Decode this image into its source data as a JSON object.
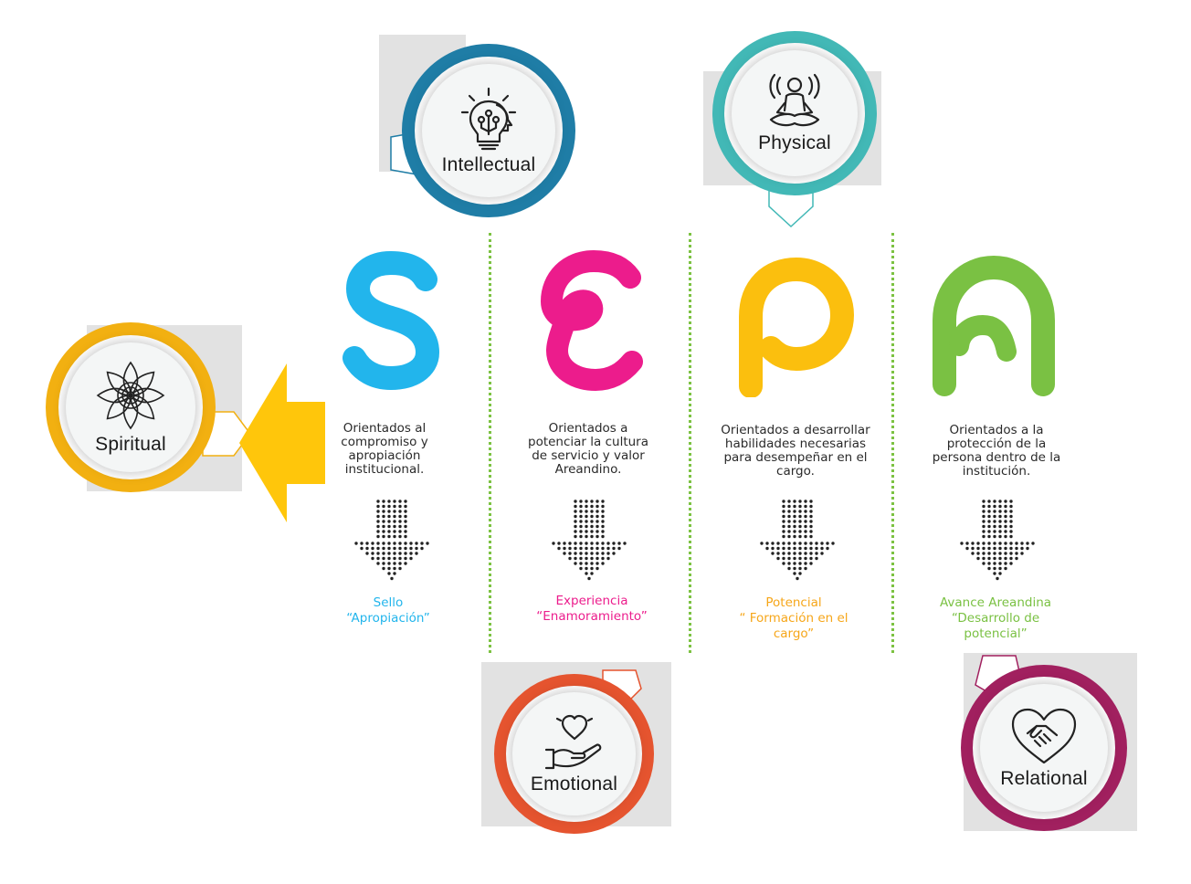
{
  "colors": {
    "s": "#22b5ec",
    "e": "#ec1c8c",
    "p": "#fbbf0e",
    "a": "#7ac143",
    "intellectual_ring": "#1f7da6",
    "physical_ring": "#42b8b6",
    "spiritual_ring": "#f2b011",
    "emotional_ring": "#e5542f",
    "relational_ring": "#a1205f",
    "divider": "#7cc242",
    "arrow_dots": "#222222",
    "big_arrow": "#ffc60b"
  },
  "dimensions": [
    {
      "id": "intellectual",
      "label": "Intellectual",
      "icon": "lightbulb-head-icon"
    },
    {
      "id": "physical",
      "label": "Physical",
      "icon": "meditation-icon"
    },
    {
      "id": "spiritual",
      "label": "Spiritual",
      "icon": "mandala-icon"
    },
    {
      "id": "emotional",
      "label": "Emotional",
      "icon": "heart-hand-icon"
    },
    {
      "id": "relational",
      "label": "Relational",
      "icon": "handshake-heart-icon"
    }
  ],
  "pillars": [
    {
      "letter": "S",
      "description": [
        "Orientados al",
        "compromiso y",
        "apropiación",
        "institucional."
      ],
      "result": [
        "Sello",
        "“Apropiación”"
      ]
    },
    {
      "letter": "E",
      "description": [
        "Orientados a",
        "potenciar la cultura",
        "de servicio y valor",
        "Areandino."
      ],
      "result": [
        "Experiencia",
        "“Enamoramiento”"
      ]
    },
    {
      "letter": "P",
      "description": [
        "Orientados a desarrollar",
        "habilidades necesarias",
        "para desempeñar en el",
        "cargo."
      ],
      "result": [
        "Potencial",
        "“ Formación en el",
        "cargo”"
      ]
    },
    {
      "letter": "A",
      "description": [
        "Orientados a la",
        "protección de la",
        "persona dentro de la",
        "institución."
      ],
      "result": [
        "Avance Areandina",
        "“Desarrollo de",
        "potencial”"
      ]
    }
  ]
}
